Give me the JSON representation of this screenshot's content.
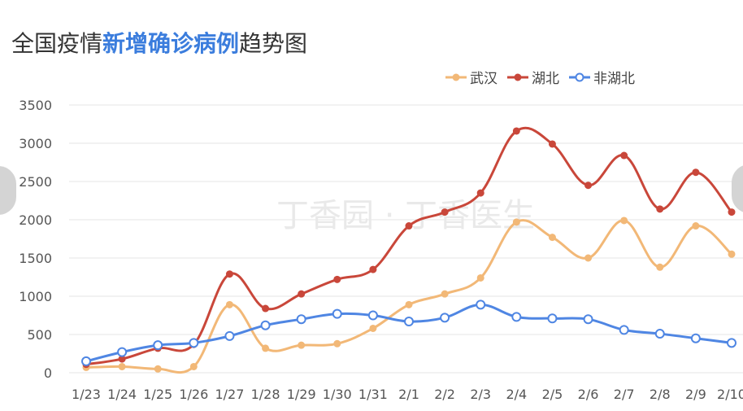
{
  "title": {
    "prefix": "全国疫情",
    "highlight": "新增确诊病例",
    "suffix": "趋势图"
  },
  "watermark": "丁香园 · 丁香医生",
  "colors": {
    "wuhan": "#f2b877",
    "hubei": "#c9473a",
    "non_hubei": "#4f86e3",
    "title_highlight": "#3b7ddd",
    "grid": "#e6e6e6"
  },
  "chart_data": {
    "type": "line",
    "title": "全国疫情新增确诊病例趋势图",
    "categories": [
      "1/23",
      "1/24",
      "1/25",
      "1/26",
      "1/27",
      "1/28",
      "1/29",
      "1/30",
      "1/31",
      "2/1",
      "2/2",
      "2/3",
      "2/4",
      "2/5",
      "2/6",
      "2/7",
      "2/8",
      "2/9",
      "2/10"
    ],
    "ylim": [
      0,
      3500
    ],
    "yticks": [
      0,
      500,
      1000,
      1500,
      2000,
      2500,
      3000,
      3500
    ],
    "grid": true,
    "legend_position": "top-right",
    "series": [
      {
        "name": "武汉",
        "key": "wuhan",
        "marker": "filled",
        "values": [
          70,
          80,
          50,
          80,
          890,
          320,
          360,
          380,
          580,
          890,
          1030,
          1240,
          1970,
          1770,
          1500,
          1990,
          1380,
          1920,
          1550
        ]
      },
      {
        "name": "湖北",
        "key": "hubei",
        "marker": "filled",
        "values": [
          110,
          180,
          320,
          370,
          1290,
          840,
          1030,
          1220,
          1350,
          1920,
          2100,
          2350,
          3160,
          2990,
          2450,
          2840,
          2140,
          2620,
          2100
        ]
      },
      {
        "name": "非湖北",
        "key": "non_hubei",
        "marker": "hollow",
        "values": [
          150,
          270,
          360,
          390,
          480,
          620,
          700,
          770,
          750,
          670,
          720,
          890,
          730,
          710,
          700,
          560,
          510,
          450,
          390
        ]
      }
    ]
  }
}
